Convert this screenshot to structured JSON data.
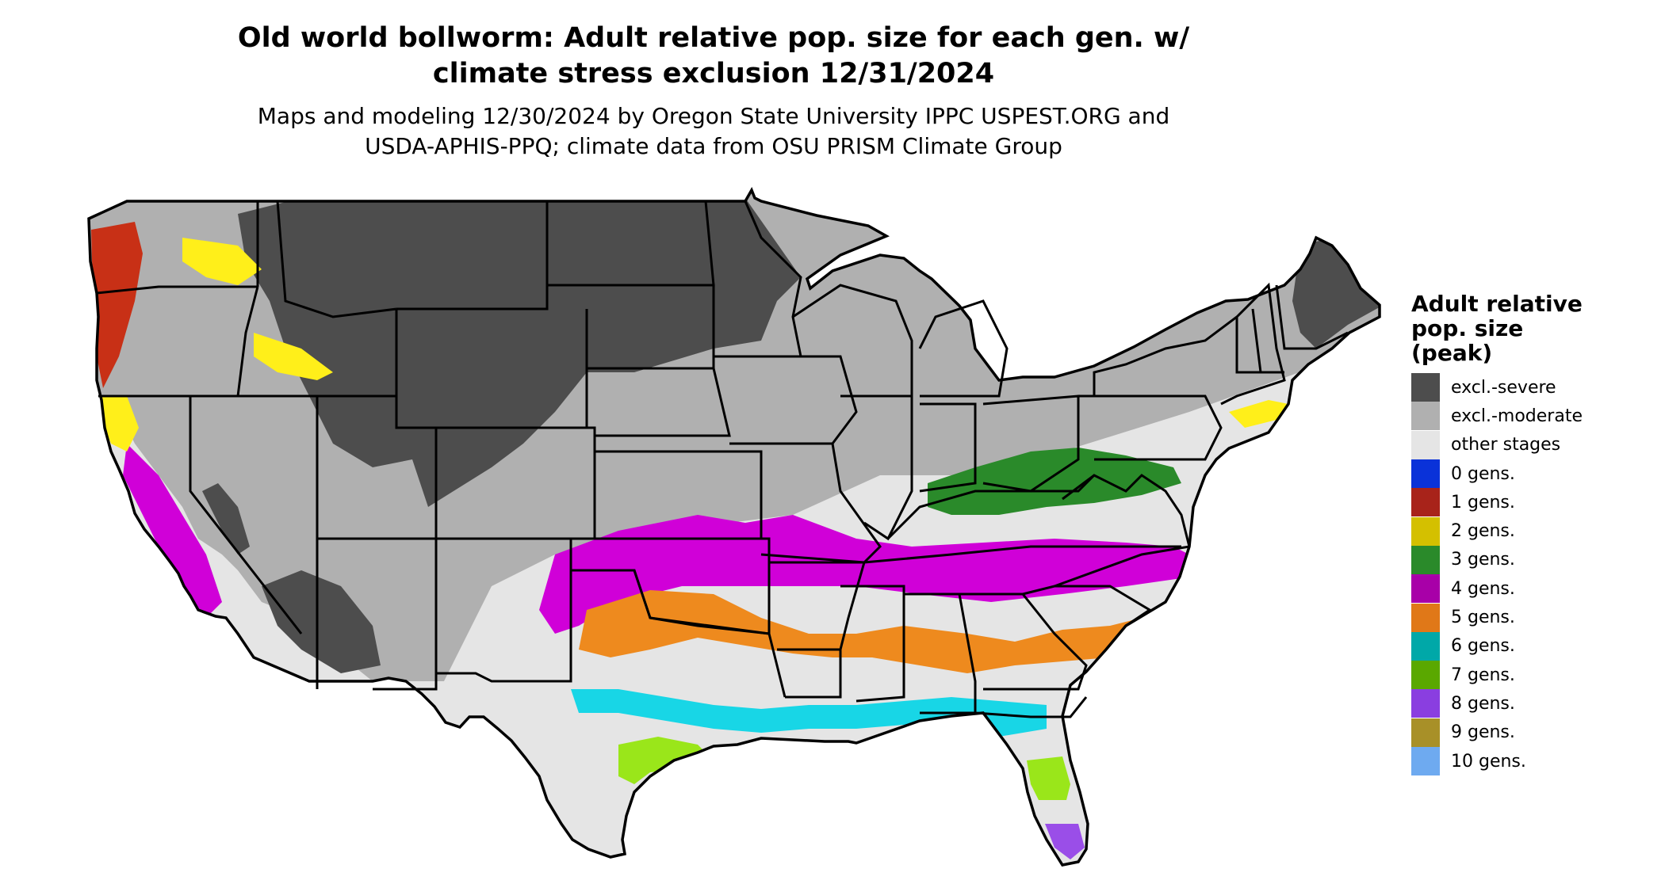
{
  "title": {
    "line1": "Old world bollworm: Adult relative pop. size for each gen. w/",
    "line2": "climate stress exclusion 12/31/2024"
  },
  "subtitle": {
    "line1": "Maps and modeling 12/30/2024 by Oregon State University IPPC USPEST.ORG and",
    "line2": "USDA-APHIS-PPQ; climate data from OSU PRISM Climate Group"
  },
  "legend": {
    "title_line1": "Adult relative",
    "title_line2": "pop. size",
    "title_line3": "(peak)",
    "items": [
      {
        "label": "excl.-severe",
        "color": "#4d4d4d"
      },
      {
        "label": "excl.-moderate",
        "color": "#b0b0b0"
      },
      {
        "label": "other stages",
        "color": "#e5e5e5"
      },
      {
        "label": "0 gens.",
        "color": "#0a32d9"
      },
      {
        "label": "1 gens.",
        "color": "#a8231a"
      },
      {
        "label": "2 gens.",
        "color": "#d4c000"
      },
      {
        "label": "3 gens.",
        "color": "#2a8a2a"
      },
      {
        "label": "4 gens.",
        "color": "#a800a8"
      },
      {
        "label": "5 gens.",
        "color": "#e07818"
      },
      {
        "label": "6 gens.",
        "color": "#00a8a8"
      },
      {
        "label": "7 gens.",
        "color": "#5aa800"
      },
      {
        "label": "8 gens.",
        "color": "#8a3ee0"
      },
      {
        "label": "9 gens.",
        "color": "#a89028"
      },
      {
        "label": "10 gens.",
        "color": "#6eaaf0"
      }
    ]
  },
  "map": {
    "region": "contiguous-united-states",
    "colors": {
      "severe": "#4d4d4d",
      "moderate": "#b0b0b0",
      "other": "#e5e5e5",
      "magenta": "#d000d8",
      "orange": "#ee8a1e",
      "cyan": "#18d6e6",
      "lime": "#9ae61a",
      "yellow": "#ffef1a",
      "red": "#c83016",
      "darkgreen": "#2a8a2a",
      "purple": "#9a4ee8",
      "border": "#000000"
    }
  }
}
